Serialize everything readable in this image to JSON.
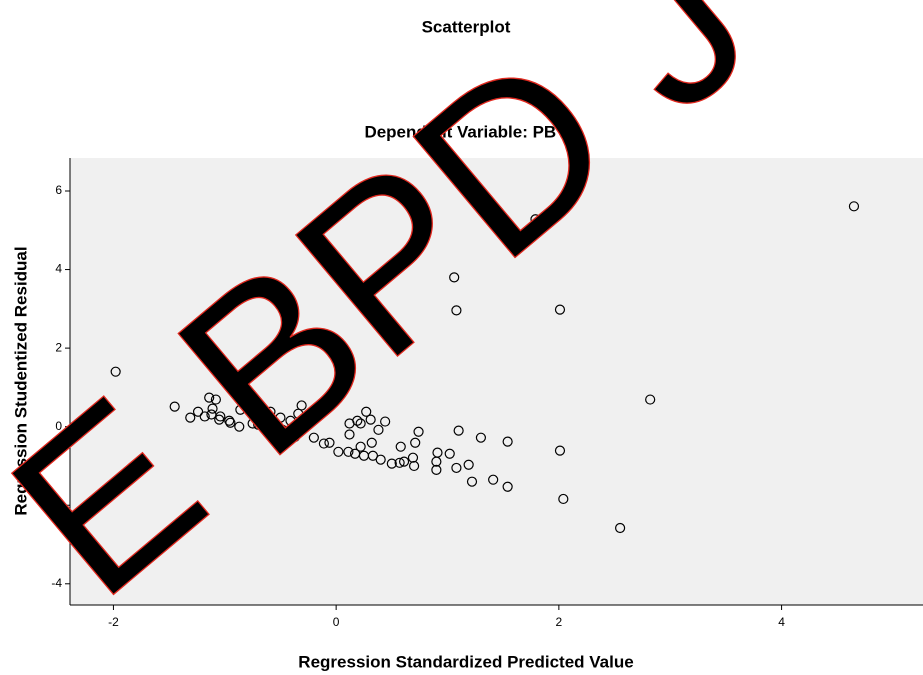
{
  "chart_data": {
    "type": "scatter",
    "title": "Scatterplot",
    "subtitle": "Dependent Variable: PBV",
    "x_label": "Regression Standardized Predicted Value",
    "y_label": "Regression Studentized Residual",
    "watermark": "E BPD J",
    "xlim": [
      -2.39,
      5.27
    ],
    "ylim": [
      -4.54,
      6.84
    ],
    "xticks": [
      -2,
      0,
      2,
      4
    ],
    "yticks": [
      -4,
      -2,
      0,
      2,
      4,
      6
    ],
    "background": "#f0f0f0",
    "series": [
      {
        "color": "#000000",
        "x": [
          1.79,
          4.65,
          1.06,
          1.08,
          2.01,
          -0.46,
          -1.98,
          2.82,
          2.55,
          2.04,
          2.01,
          1.54,
          1.54,
          1.41,
          1.3,
          1.1,
          1.22,
          1.19,
          1.08,
          1.02,
          0.9,
          0.9,
          0.91,
          0.74,
          0.71,
          0.69,
          0.7,
          0.61,
          0.58,
          0.57,
          0.5,
          0.4,
          0.33,
          0.32,
          0.25,
          0.22,
          0.17,
          0.11,
          0.02,
          -0.06,
          -0.11,
          0.12,
          0.12,
          0.19,
          0.27,
          0.31,
          0.38,
          0.44,
          0.22,
          -0.18,
          -0.2,
          -0.31,
          -0.34,
          -0.4,
          -0.44,
          -0.48,
          -0.5,
          -0.34,
          -0.41,
          -0.37,
          -0.59,
          -0.66,
          -0.66,
          -0.7,
          -0.75,
          -0.78,
          -0.86,
          -0.87,
          -0.96,
          -1.04,
          -1.08,
          -1.14,
          -1.11,
          -1.12,
          -1.18,
          -1.24,
          -1.31,
          -1.45,
          -1.05,
          -0.95,
          -0.64
        ],
        "values": [
          5.28,
          5.61,
          3.8,
          2.96,
          2.98,
          2.42,
          1.4,
          0.69,
          -2.58,
          -1.84,
          -0.61,
          -0.38,
          -1.53,
          -1.35,
          -0.28,
          -0.1,
          -1.4,
          -0.97,
          -1.05,
          -0.69,
          -1.1,
          -0.89,
          -0.66,
          -0.13,
          -0.41,
          -0.79,
          -1.0,
          -0.89,
          -0.51,
          -0.92,
          -0.94,
          -0.84,
          -0.74,
          -0.41,
          -0.74,
          -0.51,
          -0.69,
          -0.64,
          -0.64,
          -0.41,
          -0.43,
          0.08,
          -0.2,
          0.15,
          0.38,
          0.18,
          -0.08,
          0.13,
          0.08,
          0.43,
          -0.28,
          0.54,
          0.33,
          -0.18,
          -0.23,
          -0.08,
          0.23,
          -0.03,
          0.15,
          -0.26,
          0.38,
          0.38,
          0.0,
          0.05,
          0.08,
          0.84,
          0.43,
          0.0,
          0.15,
          0.26,
          0.69,
          0.74,
          0.46,
          0.31,
          0.26,
          0.38,
          0.23,
          0.51,
          0.18,
          0.1,
          0.15
        ]
      }
    ]
  }
}
